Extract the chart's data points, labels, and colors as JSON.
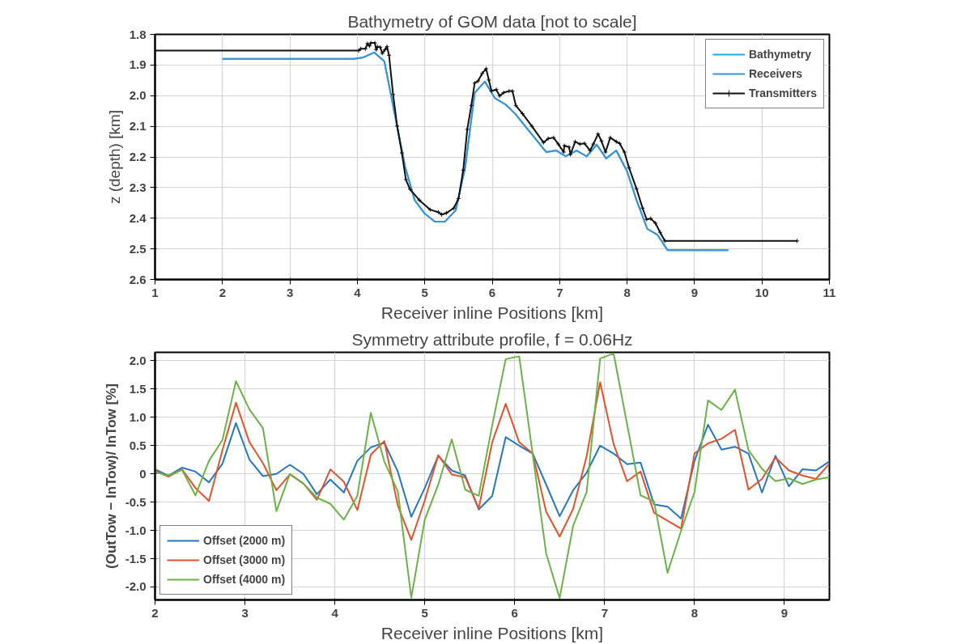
{
  "chart_data": [
    {
      "type": "line",
      "title": "Bathymetry of GOM data [not to scale]",
      "xlabel": "Receiver inline Positions [km]",
      "ylabel": "z (depth) [km]",
      "xlim": [
        1,
        11
      ],
      "xticks": [
        1,
        2,
        3,
        4,
        5,
        6,
        7,
        8,
        9,
        10,
        11
      ],
      "ylim": [
        2.6,
        1.8
      ],
      "yticks": [
        {
          "value": 1.8,
          "label": "1.8"
        },
        {
          "value": 1.9,
          "label": "1.9"
        },
        {
          "value": 2.0,
          "label": "2.0"
        },
        {
          "value": 2.1,
          "label": "2.1"
        },
        {
          "value": 2.2,
          "label": "2.2"
        },
        {
          "value": 2.3,
          "label": "2.3"
        },
        {
          "value": 2.4,
          "label": "2.4"
        },
        {
          "value": 2.5,
          "label": "2.5"
        },
        {
          "value": 2.6,
          "label": "2.6"
        }
      ],
      "grid": true,
      "legend": "top right",
      "line_style": "solid",
      "series": [
        {
          "name": "Bathymetry",
          "color": "#1eaae6",
          "x": [
            2.0,
            3.95,
            4.09,
            4.25,
            4.4,
            4.71,
            4.85,
            5.0,
            5.15,
            5.3,
            5.46,
            5.6,
            5.74,
            5.89,
            6.04,
            6.2,
            6.34,
            6.8,
            6.95,
            7.09,
            7.25,
            7.4,
            7.55,
            7.69,
            7.84,
            8.0,
            8.14,
            8.3,
            8.45,
            8.6,
            9.5
          ],
          "values": [
            1.88,
            1.88,
            1.875,
            1.859,
            1.888,
            2.233,
            2.341,
            2.385,
            2.411,
            2.411,
            2.374,
            2.233,
            1.991,
            1.954,
            2.008,
            2.029,
            2.059,
            2.184,
            2.179,
            2.198,
            2.179,
            2.198,
            2.16,
            2.205,
            2.179,
            2.247,
            2.341,
            2.435,
            2.454,
            2.504,
            2.504
          ]
        },
        {
          "name": "Receivers",
          "color": "#3a93d6",
          "x": [
            2.0,
            3.95,
            4.09,
            4.25,
            4.4,
            4.71,
            4.85,
            5.0,
            5.15,
            5.3,
            5.46,
            5.6,
            5.74,
            5.89,
            6.04,
            6.2,
            6.34,
            6.8,
            6.95,
            7.09,
            7.25,
            7.4,
            7.55,
            7.69,
            7.84,
            8.0,
            8.14,
            8.3,
            8.45,
            8.6,
            9.5
          ],
          "values": [
            1.88,
            1.88,
            1.875,
            1.859,
            1.888,
            2.233,
            2.341,
            2.385,
            2.411,
            2.411,
            2.374,
            2.233,
            1.991,
            1.954,
            2.008,
            2.029,
            2.059,
            2.184,
            2.179,
            2.198,
            2.179,
            2.198,
            2.16,
            2.205,
            2.179,
            2.247,
            2.341,
            2.435,
            2.454,
            2.504,
            2.504
          ]
        },
        {
          "name": "Transmitters",
          "color": "#111111",
          "marker": "cross",
          "x": [
            1.0,
            4.02,
            4.05,
            4.12,
            4.15,
            4.18,
            4.2,
            4.26,
            4.28,
            4.3,
            4.34,
            4.37,
            4.41,
            4.44,
            4.47,
            4.53,
            4.59,
            4.66,
            4.72,
            4.78,
            4.92,
            5.08,
            5.2,
            5.25,
            5.32,
            5.43,
            5.5,
            5.57,
            5.63,
            5.69,
            5.74,
            5.79,
            5.85,
            5.91,
            5.95,
            5.99,
            6.06,
            6.11,
            6.17,
            6.25,
            6.3,
            6.35,
            6.45,
            6.59,
            6.76,
            6.83,
            6.91,
            6.98,
            7.06,
            7.07,
            7.14,
            7.16,
            7.23,
            7.3,
            7.37,
            7.45,
            7.5,
            7.57,
            7.62,
            7.68,
            7.75,
            7.84,
            7.89,
            7.96,
            8.03,
            8.14,
            8.23,
            8.29,
            8.35,
            8.42,
            8.49,
            8.56,
            10.52
          ],
          "values": [
            1.853,
            1.853,
            1.847,
            1.847,
            1.83,
            1.838,
            1.828,
            1.828,
            1.85,
            1.84,
            1.842,
            1.862,
            1.85,
            1.84,
            1.868,
            1.996,
            2.099,
            2.187,
            2.274,
            2.305,
            2.341,
            2.372,
            2.38,
            2.388,
            2.383,
            2.367,
            2.336,
            2.243,
            2.11,
            2.032,
            1.959,
            1.952,
            1.928,
            1.912,
            1.949,
            1.985,
            1.98,
            2.001,
            1.99,
            1.985,
            1.985,
            2.032,
            2.059,
            2.1,
            2.153,
            2.14,
            2.137,
            2.158,
            2.184,
            2.163,
            2.168,
            2.192,
            2.15,
            2.158,
            2.156,
            2.179,
            2.158,
            2.125,
            2.148,
            2.184,
            2.137,
            2.15,
            2.156,
            2.184,
            2.236,
            2.304,
            2.367,
            2.404,
            2.401,
            2.416,
            2.446,
            2.474,
            2.474
          ]
        }
      ]
    },
    {
      "type": "line",
      "title": "Symmetry attribute profile, f = 0.06Hz",
      "xlabel": "Receiver inline Positions [km]",
      "ylabel": "(OutTow − InTow)/ InTow [%]",
      "x": [
        2.0,
        2.15,
        2.3,
        2.45,
        2.6,
        2.75,
        2.9,
        3.05,
        3.2,
        3.35,
        3.5,
        3.65,
        3.8,
        3.95,
        4.1,
        4.25,
        4.4,
        4.55,
        4.7,
        4.85,
        5.0,
        5.15,
        5.3,
        5.45,
        5.6,
        5.75,
        5.9,
        6.05,
        6.2,
        6.35,
        6.5,
        6.65,
        6.8,
        6.95,
        7.1,
        7.25,
        7.4,
        7.55,
        7.7,
        7.85,
        8.0,
        8.15,
        8.3,
        8.45,
        8.6,
        8.75,
        8.9,
        9.05,
        9.2,
        9.35,
        9.5
      ],
      "xlim": [
        2,
        9.5
      ],
      "xticks": [
        2,
        3,
        4,
        5,
        6,
        7,
        8,
        9
      ],
      "ylim": [
        -2.23,
        2.15
      ],
      "yticks": [
        {
          "value": 2.0,
          "label": "2.0"
        },
        1.5,
        {
          "value": 1.0,
          "label": "1.0"
        },
        0.5,
        0,
        -0.5,
        {
          "value": -1.0,
          "label": "-1.0"
        },
        -1.5,
        {
          "value": -2.0,
          "label": "-2.0"
        }
      ],
      "grid": true,
      "legend": "bottom left",
      "line_style": "solid",
      "series": [
        {
          "name": "Offset (2000 m)",
          "color": "#2477c4",
          "values": [
            0.08,
            -0.03,
            0.11,
            0.04,
            -0.15,
            0.18,
            0.9,
            0.25,
            -0.04,
            0.0,
            0.16,
            0.0,
            -0.36,
            -0.1,
            -0.33,
            0.23,
            0.47,
            0.55,
            0.04,
            -0.76,
            -0.25,
            0.32,
            0.06,
            -0.03,
            -0.63,
            -0.39,
            0.65,
            0.5,
            0.36,
            -0.19,
            -0.75,
            -0.29,
            0.02,
            0.5,
            0.36,
            0.17,
            0.2,
            -0.54,
            -0.58,
            -0.79,
            0.23,
            0.87,
            0.43,
            0.48,
            0.36,
            -0.33,
            0.32,
            -0.22,
            0.08,
            0.06,
            0.22
          ]
        },
        {
          "name": "Offset (3000 m)",
          "color": "#e2532a",
          "values": [
            0.05,
            -0.05,
            0.08,
            -0.25,
            -0.48,
            0.42,
            1.26,
            0.56,
            0.19,
            -0.29,
            -0.01,
            -0.17,
            -0.46,
            0.08,
            -0.14,
            -0.64,
            0.34,
            0.58,
            -0.56,
            -1.17,
            -0.47,
            0.33,
            -0.01,
            -0.06,
            -0.61,
            0.56,
            1.24,
            0.56,
            0.36,
            -0.67,
            -1.11,
            -0.62,
            0.31,
            1.62,
            0.53,
            -0.13,
            0.04,
            -0.69,
            -0.83,
            -0.97,
            0.36,
            0.54,
            0.62,
            0.78,
            -0.28,
            -0.09,
            0.29,
            0.06,
            -0.03,
            -0.09,
            0.18
          ]
        },
        {
          "name": "Offset (4000 m)",
          "color": "#6ab344",
          "values": [
            0.03,
            -0.03,
            0.07,
            -0.38,
            0.23,
            0.6,
            1.64,
            1.14,
            0.81,
            -0.66,
            0.0,
            -0.17,
            -0.42,
            -0.53,
            -0.81,
            -0.39,
            1.08,
            0.22,
            -0.31,
            -2.19,
            -0.81,
            -0.19,
            0.61,
            -0.28,
            -0.39,
            0.86,
            2.03,
            2.08,
            0.35,
            -1.41,
            -2.2,
            -0.92,
            -0.32,
            2.04,
            2.13,
            0.88,
            -0.38,
            -0.49,
            -1.75,
            -1.01,
            -0.32,
            1.3,
            1.13,
            1.49,
            0.42,
            0.09,
            -0.13,
            -0.08,
            -0.18,
            -0.1,
            -0.06
          ]
        }
      ]
    }
  ]
}
